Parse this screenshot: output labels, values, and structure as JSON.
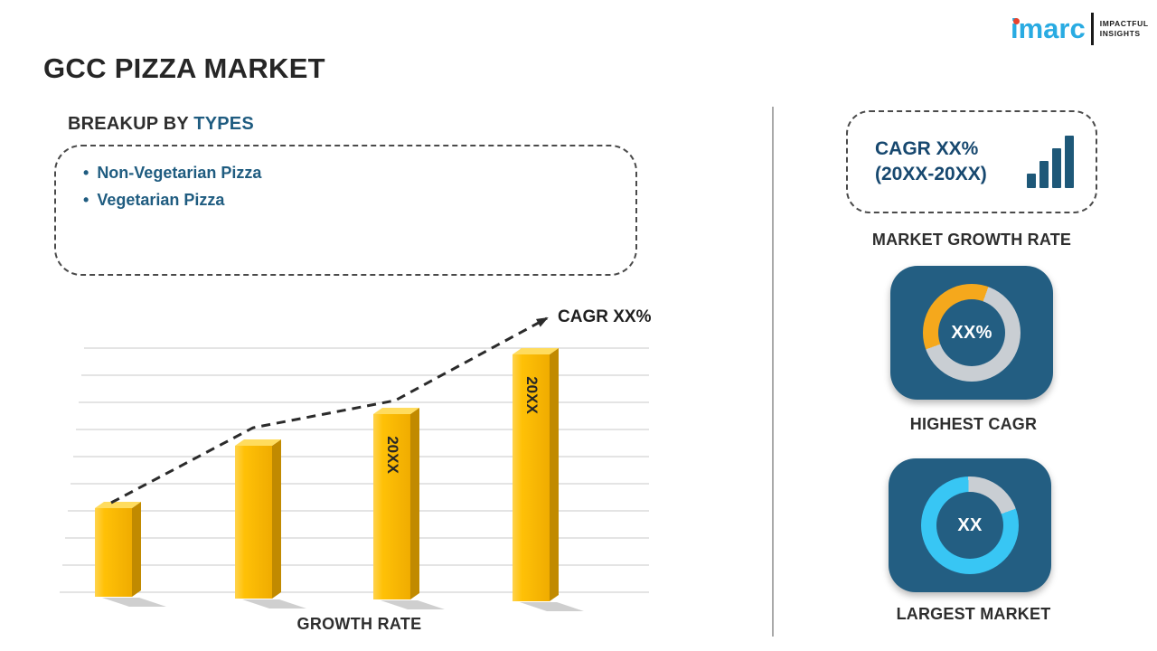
{
  "page": {
    "title": "GCC PIZZA MARKET"
  },
  "logo": {
    "brand": "imarc",
    "tagline_line1": "IMPACTFUL",
    "tagline_line2": "INSIGHTS"
  },
  "breakup": {
    "heading_prefix": "BREAKUP BY ",
    "heading_highlight": "TYPES",
    "bullet": "•",
    "items": [
      "Non-Vegetarian Pizza",
      "Vegetarian Pizza"
    ]
  },
  "chart_data": [
    {
      "type": "bar",
      "x_axis_label": "GROWTH RATE",
      "trend_label": "CAGR XX%",
      "trend": "rising-dashed-arrow",
      "gridlines": true,
      "bar_color": "#FFC107",
      "bars": [
        {
          "label": "",
          "relative_height": 0.36
        },
        {
          "label": "",
          "relative_height": 0.62
        },
        {
          "label": "20XX",
          "relative_height": 0.75
        },
        {
          "label": "20XX",
          "relative_height": 1.0
        }
      ]
    },
    {
      "type": "donut",
      "name": "highest-cagr",
      "center_label": "XX%",
      "segment_fraction": 0.36,
      "segment_start_deg": 250,
      "segment_color": "#F5A81C",
      "track_color": "#C9CED3"
    },
    {
      "type": "donut",
      "name": "largest-market",
      "center_label": "XX",
      "segment_fraction": 0.8,
      "segment_start_deg": 70,
      "segment_color": "#38C6F4",
      "track_color": "#C9CED3"
    }
  ],
  "right_panel": {
    "cagr_box": {
      "line1": "CAGR XX%",
      "line2": "(20XX-20XX)"
    },
    "market_growth_label": "MARKET GROWTH RATE",
    "highest_cagr_label": "HIGHEST CAGR",
    "largest_market_label": "LARGEST MARKET"
  },
  "colors": {
    "headline_text": "#2E2E2E",
    "accent_blue": "#1F5C80",
    "navy_text": "#17486F",
    "tile_background": "#235E82",
    "bar_yellow": "#FFC107",
    "donut_yellow": "#F5A81C",
    "donut_cyan": "#38C6F4",
    "donut_track": "#C9CED3",
    "logo_blue": "#29ABE2",
    "logo_red": "#E8432D"
  }
}
